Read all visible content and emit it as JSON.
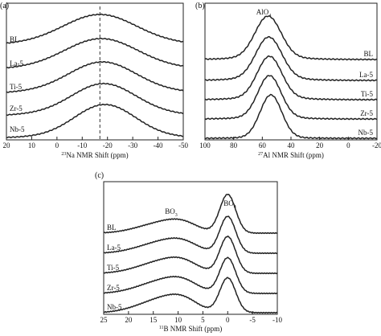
{
  "chart_data": [
    {
      "panel_label": "(a)",
      "type": "line",
      "xlabel_prefix": "23",
      "xlabel_text": "Na NMR Shift (ppm)",
      "xlim": [
        20,
        -50
      ],
      "xticks": [
        "20",
        "10",
        "0",
        "-10",
        "-20",
        "-30",
        "-40",
        "-50"
      ],
      "xtick_values": [
        20,
        10,
        0,
        -10,
        -20,
        -30,
        -40,
        -50
      ],
      "reference_line_x": -17,
      "series": [
        {
          "name": "BL",
          "peak": -17,
          "width": 14,
          "baseline": 0.22
        },
        {
          "name": "La-5",
          "peak": -17.5,
          "width": 14,
          "baseline": 0.2
        },
        {
          "name": "Ti-5",
          "peak": -18,
          "width": 13,
          "baseline": 0.18
        },
        {
          "name": "Zr-5",
          "peak": -18.5,
          "width": 12.5,
          "baseline": 0.14
        },
        {
          "name": "Nb-5",
          "peak": -19,
          "width": 12,
          "baseline": 0.05
        }
      ]
    },
    {
      "panel_label": "(b)",
      "type": "line",
      "xlabel_prefix": "27",
      "xlabel_text": "Al NMR Shift (ppm)",
      "xlim": [
        100,
        -20
      ],
      "xticks": [
        "100",
        "80",
        "60",
        "40",
        "20",
        "0",
        "-20"
      ],
      "xtick_values": [
        100,
        80,
        60,
        40,
        20,
        0,
        -20
      ],
      "annotation": {
        "text": "AlO",
        "sub": "4",
        "x": 56
      },
      "series": [
        {
          "name": "BL",
          "peak": 56,
          "width": 9,
          "baseline": 0.05
        },
        {
          "name": "La-5",
          "peak": 55.5,
          "width": 9,
          "baseline": 0.05
        },
        {
          "name": "Ti-5",
          "peak": 55,
          "width": 8.5,
          "baseline": 0.05
        },
        {
          "name": "Zr-5",
          "peak": 55,
          "width": 8,
          "baseline": 0.04
        },
        {
          "name": "Nb-5",
          "peak": 54,
          "width": 7.5,
          "baseline": 0.02
        }
      ]
    },
    {
      "panel_label": "(c)",
      "type": "line",
      "xlabel_prefix": "11",
      "xlabel_text": "B NMR Shift (ppm)",
      "xlim": [
        25,
        -10
      ],
      "xticks": [
        "25",
        "20",
        "15",
        "10",
        "5",
        "0",
        "-5",
        "-10"
      ],
      "xtick_values": [
        25,
        20,
        15,
        10,
        5,
        0,
        -5,
        -10
      ],
      "annotations": [
        {
          "text": "BO",
          "sub": "3",
          "x": 13
        },
        {
          "text": "BO",
          "sub": "4",
          "x": 0
        }
      ],
      "series": [
        {
          "name": "BL",
          "bo3": 0.42,
          "bo4": 1.0
        },
        {
          "name": "La-5",
          "bo3": 0.45,
          "bo4": 0.95
        },
        {
          "name": "Ti-5",
          "bo3": 0.48,
          "bo4": 0.95
        },
        {
          "name": "Zr-5",
          "bo3": 0.5,
          "bo4": 0.92
        },
        {
          "name": "Nb-5",
          "bo3": 0.55,
          "bo4": 0.9
        }
      ]
    }
  ]
}
